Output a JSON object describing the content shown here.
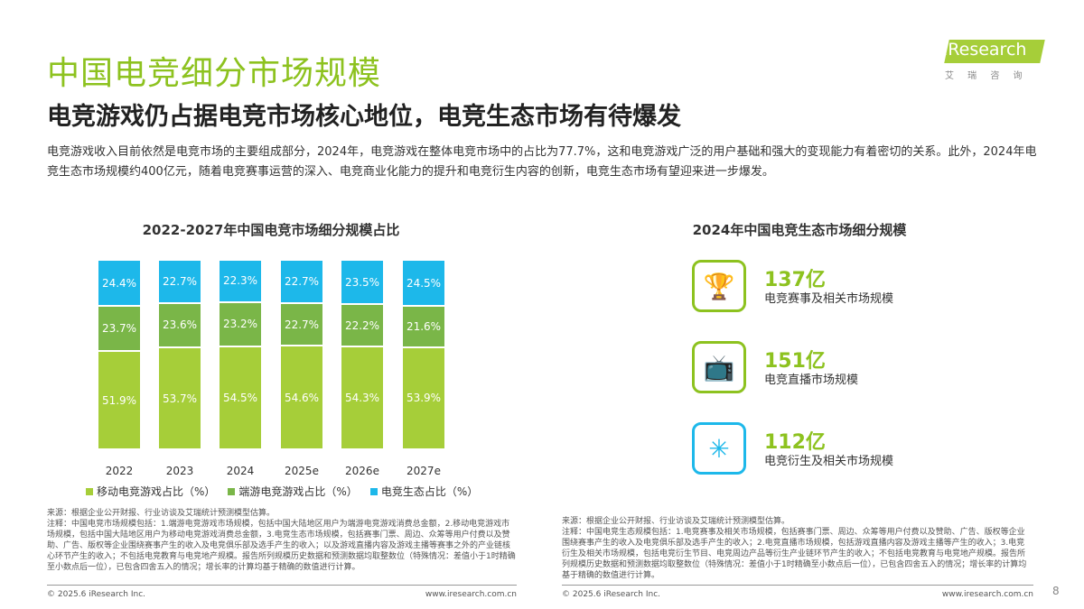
{
  "header": {
    "title": "中国电竞细分市场规模",
    "subtitle": "电竞游戏仍占据电竞市场核心地位，电竞生态市场有待爆发",
    "logo": "iResearch",
    "logo_cn": "艾 瑞 咨 询"
  },
  "intro": "电竞游戏收入目前依然是电竞市场的主要组成部分，2024年，电竞游戏在整体电竞市场中的占比为77.7%，这和电竞游戏广泛的用户基础和强大的变现能力有着密切的关系。此外，2024年电竞生态市场规模约400亿元，随着电竞赛事运营的深入、电竞商业化能力的提升和电竞衍生内容的创新，电竞生态市场有望迎来进一步爆发。",
  "chart_data": {
    "type": "bar",
    "stacked": true,
    "percent": true,
    "title": "2022-2027年中国电竞市场细分规模占比",
    "categories": [
      "2022",
      "2023",
      "2024",
      "2025e",
      "2026e",
      "2027e"
    ],
    "series": [
      {
        "name": "移动电竞游戏占比（%）",
        "values": [
          51.9,
          53.7,
          54.5,
          54.6,
          54.3,
          53.9
        ],
        "color": "#A6CE39"
      },
      {
        "name": "端游电竞游戏占比（%）",
        "values": [
          23.7,
          23.6,
          23.2,
          22.7,
          22.2,
          21.6
        ],
        "color": "#7AB648"
      },
      {
        "name": "电竞生态占比（%）",
        "values": [
          24.4,
          22.7,
          22.3,
          22.7,
          23.5,
          24.5
        ],
        "color": "#1DB8EA"
      }
    ],
    "legend": "bottom"
  },
  "ecosystem": {
    "title": "2024年中国电竞生态市场细分规模",
    "items": [
      {
        "icon": "trophy-icon",
        "value": "137亿",
        "label": "电竞赛事及相关市场规模",
        "color": "#8DC21F"
      },
      {
        "icon": "tv-icon",
        "value": "151亿",
        "label": "电竞直播市场规模",
        "color": "#8DC21F"
      },
      {
        "icon": "network-icon",
        "value": "112亿",
        "label": "电竞衍生及相关市场规模",
        "color": "#1DB8EA"
      }
    ]
  },
  "notes_left": {
    "source": "来源：根据企业公开财报、行业访谈及艾瑞统计预测模型估算。",
    "note": "注释：中国电竞市场规模包括：1.端游电竞游戏市场规模，包括中国大陆地区用户为端游电竞游戏消费总金额，2.移动电竞游戏市场规模，包括中国大陆地区用户为移动电竞游戏消费总金额，3.电竞生态市场规模，包括赛事门票、周边、众筹等用户付费以及赞助、广告、版权等企业围绕赛事产生的收入及电竞俱乐部及选手产生的收入；以及游戏直播内容及游戏主播等赛事之外的产业链核心环节产生的收入；不包括电竞教育与电竞地产规模。报告所列规模历史数据和预测数据均取整数位（特殊情况：差值小于1时精确至小数点后一位），已包含四舍五入的情况；增长率的计算均基于精确的数值进行计算。"
  },
  "notes_right": {
    "source": "来源：根据企业公开财报、行业访谈及艾瑞统计预测模型估算。",
    "note": "注释：中国电竞生态规模包括：1.电竞赛事及相关市场规模，包括赛事门票、周边、众筹等用户付费以及赞助、广告、版权等企业围绕赛事产生的收入及电竞俱乐部及选手产生的收入；2.电竞直播市场规模，包括游戏直播内容及游戏主播等产生的收入；3.电竞衍生及相关市场规模，包括电竞衍生节目、电竞周边产品等衍生产业链环节产生的收入；不包括电竞教育与电竞地产规模。报告所列规模历史数据和预测数据均取整数位（特殊情况：差值小于1时精确至小数点后一位），已包含四舍五入的情况；增长率的计算均基于精确的数值进行计算。"
  },
  "footer": {
    "copyright": "© 2025.6 iResearch Inc.",
    "url": "www.iresearch.com.cn",
    "page": "8"
  }
}
